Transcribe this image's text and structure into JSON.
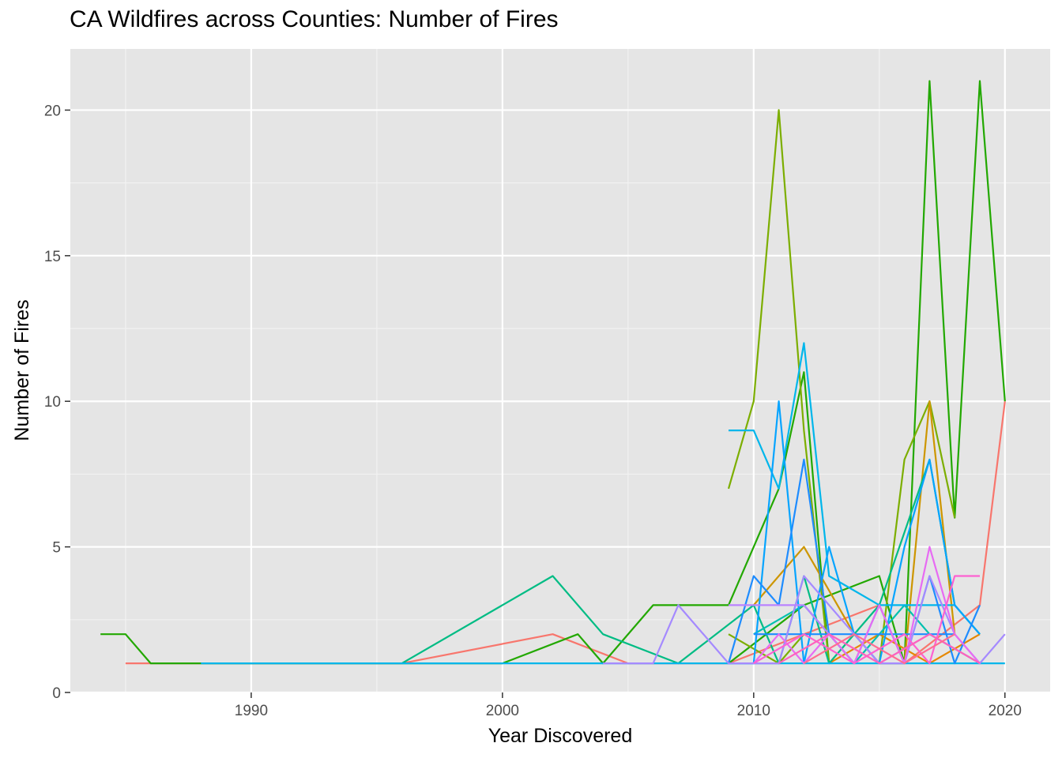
{
  "chart_data": {
    "type": "line",
    "title": "CA Wildfires across Counties: Number of Fires",
    "xlabel": "Year Discovered",
    "ylabel": "Number of Fires",
    "xlim": [
      1982.8,
      2021.8
    ],
    "ylim": [
      0,
      22.1
    ],
    "x_ticks": [
      1990,
      2000,
      2010,
      2020
    ],
    "y_ticks": [
      0,
      5,
      10,
      15,
      20
    ],
    "x_minor": [
      1985,
      1995,
      2005,
      2015
    ],
    "y_minor": [
      2.5,
      7.5,
      12.5,
      17.5
    ],
    "grid": true,
    "legend": "none",
    "series": [
      {
        "color": "#F8766D",
        "x": [
          1985,
          1986,
          1996,
          2002,
          2005,
          2009,
          2015,
          2016,
          2019,
          2020
        ],
        "y": [
          1,
          1,
          1,
          2,
          1,
          1,
          3,
          1,
          3,
          10
        ]
      },
      {
        "color": "#22A800",
        "x": [
          1984,
          1985,
          1986,
          1996,
          2000,
          2003,
          2004,
          2006,
          2009,
          2011,
          2012,
          2013
        ],
        "y": [
          2,
          2,
          1,
          1,
          1,
          2,
          1,
          3,
          3,
          7,
          11,
          1
        ]
      },
      {
        "color": "#22A800",
        "x": [
          2009,
          2012,
          2015,
          2016,
          2017,
          2018,
          2019,
          2020
        ],
        "y": [
          1,
          3,
          4,
          1,
          21,
          6,
          21,
          10
        ]
      },
      {
        "color": "#7CAE00",
        "x": [
          2009,
          2010,
          2011,
          2012,
          2013
        ],
        "y": [
          7,
          10,
          20,
          9,
          1
        ]
      },
      {
        "color": "#7CAE00",
        "x": [
          2015,
          2016,
          2017,
          2018
        ],
        "y": [
          1,
          8,
          10,
          6
        ]
      },
      {
        "color": "#7CAE00",
        "x": [
          2009,
          2010,
          2011,
          2012
        ],
        "y": [
          2,
          1.5,
          1,
          2
        ]
      },
      {
        "color": "#CD9600",
        "x": [
          2010,
          2012,
          2014,
          2015,
          2016,
          2017,
          2018
        ],
        "y": [
          3,
          5,
          2,
          1,
          1,
          10,
          2
        ]
      },
      {
        "color": "#E58700",
        "x": [
          2013,
          2015,
          2017,
          2019
        ],
        "y": [
          1,
          2,
          1,
          2
        ]
      },
      {
        "color": "#00BC84",
        "x": [
          1996,
          2002,
          2004,
          2007,
          2010,
          2011,
          2012,
          2013,
          2015,
          2017,
          2018,
          2019
        ],
        "y": [
          1,
          4,
          2,
          1,
          3,
          1,
          4,
          1,
          3,
          8,
          3,
          2
        ]
      },
      {
        "color": "#00C0AF",
        "x": [
          2010,
          2012,
          2014,
          2016,
          2017,
          2019
        ],
        "y": [
          2,
          3,
          1,
          3,
          2,
          1
        ]
      },
      {
        "color": "#00B6EB",
        "x": [
          1988,
          2009,
          2020
        ],
        "y": [
          1,
          1,
          1
        ]
      },
      {
        "color": "#00B6EB",
        "x": [
          2009,
          2010,
          2011,
          2012,
          2013,
          2015,
          2016,
          2018,
          2019
        ],
        "y": [
          9,
          9,
          7,
          12,
          4,
          3,
          3,
          3,
          2
        ]
      },
      {
        "color": "#06A4FF",
        "x": [
          2009,
          2010,
          2011,
          2012,
          2013,
          2014,
          2015,
          2016,
          2017,
          2018,
          2019
        ],
        "y": [
          1,
          1,
          10,
          1,
          5,
          2,
          1,
          5,
          8,
          3,
          2
        ]
      },
      {
        "color": "#1E8CFF",
        "x": [
          2009,
          2010,
          2011,
          2012,
          2013,
          2014,
          2015,
          2016,
          2017,
          2018,
          2019
        ],
        "y": [
          1,
          4,
          3,
          8,
          2,
          1,
          3,
          1,
          4,
          1,
          3
        ]
      },
      {
        "color": "#1E8CFF",
        "x": [
          2010,
          2012,
          2014,
          2016,
          2018
        ],
        "y": [
          2,
          2,
          2,
          2,
          2
        ]
      },
      {
        "color": "#A58AFF",
        "x": [
          2004,
          2006,
          2007,
          2009,
          2011,
          2012,
          2014,
          2015,
          2016,
          2017,
          2018,
          2019,
          2020
        ],
        "y": [
          1,
          1,
          3,
          1,
          1,
          4,
          2,
          1,
          1,
          4,
          2,
          1,
          2
        ]
      },
      {
        "color": "#B983FF",
        "x": [
          2009,
          2012,
          2013,
          2015,
          2017,
          2019
        ],
        "y": [
          3,
          3,
          2,
          1,
          2,
          1
        ]
      },
      {
        "color": "#E76BF3",
        "x": [
          2010,
          2011,
          2012,
          2013,
          2014,
          2015,
          2016,
          2017,
          2018,
          2019
        ],
        "y": [
          1,
          2,
          1,
          2,
          1,
          3,
          1,
          5,
          2,
          1
        ]
      },
      {
        "color": "#FD61D1",
        "x": [
          2010,
          2012,
          2014,
          2016,
          2017,
          2018,
          2019
        ],
        "y": [
          1,
          2,
          1,
          2,
          1,
          4,
          4
        ]
      },
      {
        "color": "#FF62BC",
        "x": [
          2011,
          2013,
          2015,
          2017,
          2019
        ],
        "y": [
          1,
          2,
          1,
          2,
          1
        ]
      },
      {
        "color": "#FF6C91",
        "x": [
          2012,
          2014,
          2016,
          2018
        ],
        "y": [
          1,
          2,
          1,
          2
        ]
      }
    ]
  }
}
